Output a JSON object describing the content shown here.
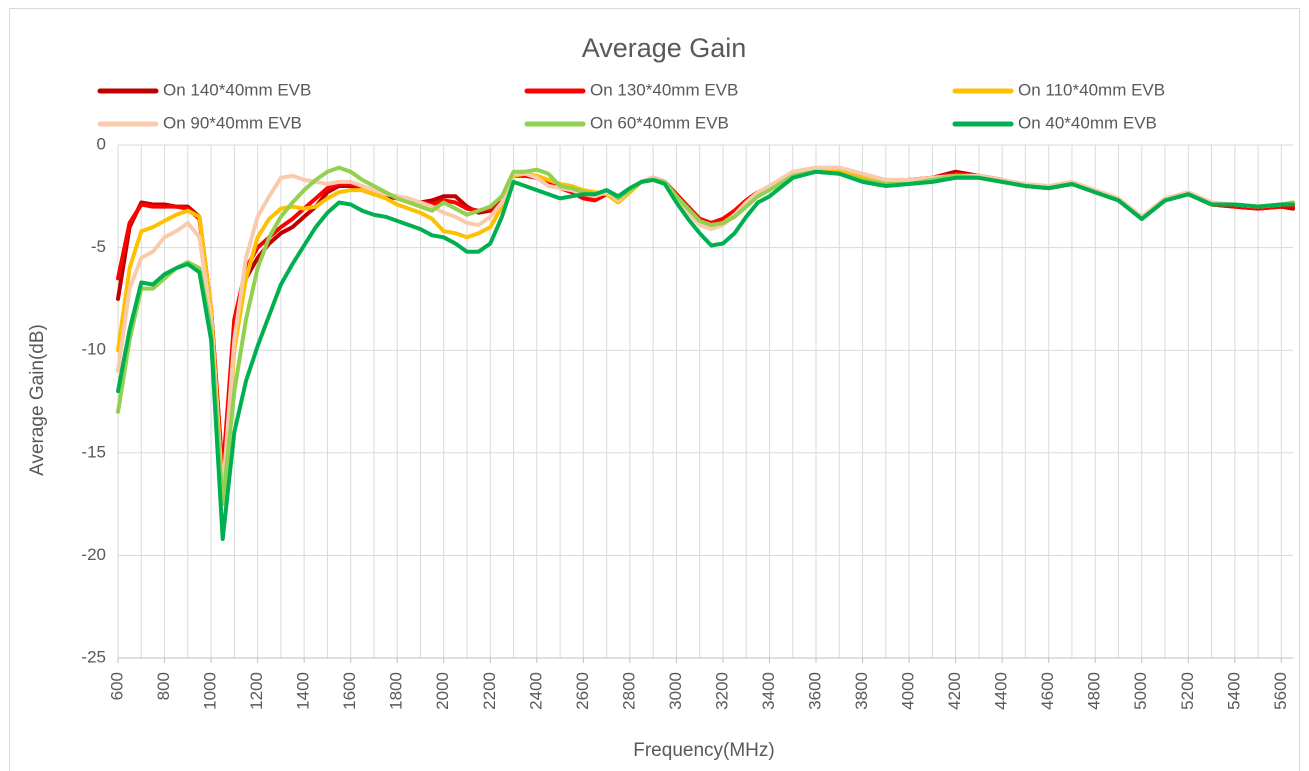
{
  "chart_data": {
    "type": "line",
    "title": "Average Gain",
    "x_label": "Frequency(MHz)",
    "y_label": "Average Gain(dB)",
    "xlim": [
      600,
      5650
    ],
    "ylim": [
      -25,
      0
    ],
    "xticks": [
      600,
      800,
      1000,
      1200,
      1400,
      1600,
      1800,
      2000,
      2200,
      2400,
      2600,
      2800,
      3000,
      3200,
      3400,
      3600,
      3800,
      4000,
      4200,
      4400,
      4600,
      4800,
      5000,
      5200,
      5400,
      5600
    ],
    "yticks": [
      0,
      -5,
      -10,
      -15,
      -20,
      -25
    ],
    "grid": true,
    "x_grid_step": 100,
    "legend": "top",
    "x": [
      600,
      650,
      700,
      750,
      800,
      850,
      900,
      950,
      1000,
      1050,
      1100,
      1150,
      1200,
      1250,
      1300,
      1350,
      1400,
      1450,
      1500,
      1550,
      1600,
      1650,
      1700,
      1750,
      1800,
      1850,
      1900,
      1950,
      2000,
      2050,
      2100,
      2150,
      2200,
      2250,
      2300,
      2350,
      2400,
      2450,
      2500,
      2550,
      2600,
      2650,
      2700,
      2750,
      2800,
      2850,
      2900,
      2950,
      3000,
      3050,
      3100,
      3150,
      3200,
      3250,
      3300,
      3350,
      3400,
      3500,
      3600,
      3700,
      3800,
      3900,
      4000,
      4100,
      4200,
      4300,
      4400,
      4500,
      4600,
      4700,
      4800,
      4900,
      5000,
      5100,
      5200,
      5300,
      5400,
      5500,
      5600,
      5650
    ],
    "series": [
      {
        "name": "On 140*40mm EVB",
        "color": "#c00000",
        "values": [
          -7.5,
          -4,
          -2.8,
          -2.9,
          -2.9,
          -3,
          -3,
          -3.5,
          -8,
          -16,
          -9,
          -6.5,
          -5.5,
          -4.8,
          -4.3,
          -4,
          -3.5,
          -3,
          -2.3,
          -2,
          -2,
          -2.2,
          -2.4,
          -2.5,
          -2.6,
          -2.7,
          -2.8,
          -2.7,
          -2.5,
          -2.5,
          -3,
          -3.3,
          -3.2,
          -2.8,
          -1.5,
          -1.5,
          -1.6,
          -1.8,
          -2,
          -2.2,
          -2.5,
          -2.6,
          -2.3,
          -2.6,
          -2.2,
          -1.8,
          -1.6,
          -1.8,
          -2.4,
          -3,
          -3.6,
          -3.8,
          -3.6,
          -3.2,
          -2.7,
          -2.3,
          -2.1,
          -1.5,
          -1.2,
          -1.3,
          -1.6,
          -1.8,
          -1.7,
          -1.6,
          -1.3,
          -1.5,
          -1.7,
          -2,
          -2.1,
          -1.9,
          -2.3,
          -2.7,
          -3.6,
          -2.7,
          -2.4,
          -2.9,
          -3,
          -3.1,
          -3,
          -3.1
        ]
      },
      {
        "name": "On 130*40mm EVB",
        "color": "#ff0000",
        "values": [
          -6.5,
          -3.8,
          -2.9,
          -3,
          -3,
          -3,
          -3.1,
          -3.6,
          -8,
          -16,
          -8.5,
          -6,
          -5,
          -4.5,
          -4,
          -3.6,
          -3.1,
          -2.6,
          -2.1,
          -1.9,
          -1.9,
          -2.1,
          -2.3,
          -2.4,
          -2.5,
          -2.7,
          -2.8,
          -2.9,
          -2.7,
          -2.8,
          -3.1,
          -3.2,
          -3.1,
          -2.7,
          -1.5,
          -1.5,
          -1.6,
          -1.9,
          -2.1,
          -2.3,
          -2.6,
          -2.7,
          -2.4,
          -2.7,
          -2.2,
          -1.8,
          -1.6,
          -1.8,
          -2.4,
          -3,
          -3.6,
          -3.8,
          -3.6,
          -3.2,
          -2.7,
          -2.3,
          -2.1,
          -1.5,
          -1.2,
          -1.3,
          -1.6,
          -1.8,
          -1.7,
          -1.6,
          -1.4,
          -1.5,
          -1.7,
          -2,
          -2.1,
          -1.9,
          -2.3,
          -2.7,
          -3.6,
          -2.7,
          -2.4,
          -2.9,
          -3,
          -3.1,
          -3,
          -3
        ]
      },
      {
        "name": "On 110*40mm EVB",
        "color": "#ffc000",
        "values": [
          -10,
          -6,
          -4.2,
          -4,
          -3.7,
          -3.4,
          -3.2,
          -3.5,
          -8,
          -17,
          -10,
          -6.5,
          -4.5,
          -3.6,
          -3.1,
          -3,
          -3.1,
          -3,
          -2.6,
          -2.3,
          -2.2,
          -2.2,
          -2.4,
          -2.6,
          -2.9,
          -3.1,
          -3.3,
          -3.6,
          -4.2,
          -4.3,
          -4.5,
          -4.3,
          -4,
          -3,
          -1.5,
          -1.4,
          -1.5,
          -1.7,
          -1.9,
          -2,
          -2.2,
          -2.3,
          -2.4,
          -2.8,
          -2.3,
          -1.8,
          -1.7,
          -1.8,
          -2.5,
          -3.1,
          -3.7,
          -4,
          -3.8,
          -3.4,
          -2.9,
          -2.4,
          -2.2,
          -1.5,
          -1.2,
          -1.3,
          -1.6,
          -1.8,
          -1.8,
          -1.7,
          -1.5,
          -1.6,
          -1.8,
          -2,
          -2.1,
          -1.9,
          -2.3,
          -2.7,
          -3.6,
          -2.7,
          -2.4,
          -2.9,
          -2.9,
          -3,
          -2.9,
          -2.8
        ]
      },
      {
        "name": "On 90*40mm EVB",
        "color": "#f8cbad",
        "values": [
          -11,
          -7,
          -5.5,
          -5.2,
          -4.5,
          -4.2,
          -3.8,
          -4.5,
          -8.5,
          -17,
          -9.5,
          -5.5,
          -3.5,
          -2.5,
          -1.6,
          -1.5,
          -1.7,
          -1.8,
          -1.9,
          -1.8,
          -1.8,
          -2,
          -2.2,
          -2.4,
          -2.5,
          -2.6,
          -2.8,
          -3,
          -3.3,
          -3.5,
          -3.8,
          -3.9,
          -3.5,
          -2.8,
          -1.4,
          -1.4,
          -1.6,
          -2,
          -2.1,
          -2.2,
          -2.4,
          -2.5,
          -2.3,
          -2.7,
          -2.2,
          -1.8,
          -1.6,
          -1.8,
          -2.6,
          -3.3,
          -3.9,
          -4.1,
          -3.9,
          -3.4,
          -2.8,
          -2.3,
          -2,
          -1.3,
          -1.1,
          -1.1,
          -1.4,
          -1.7,
          -1.7,
          -1.6,
          -1.5,
          -1.5,
          -1.7,
          -1.9,
          -2,
          -1.8,
          -2.2,
          -2.6,
          -3.5,
          -2.6,
          -2.3,
          -2.8,
          -2.9,
          -3,
          -2.9,
          -2.8
        ]
      },
      {
        "name": "On 60*40mm EVB",
        "color": "#92d050",
        "values": [
          -13,
          -9.5,
          -7,
          -7,
          -6.5,
          -6,
          -5.7,
          -6,
          -9,
          -17.5,
          -12,
          -8.5,
          -6,
          -4.5,
          -3.5,
          -2.8,
          -2.2,
          -1.7,
          -1.3,
          -1.1,
          -1.3,
          -1.7,
          -2,
          -2.3,
          -2.6,
          -2.8,
          -3,
          -3.2,
          -2.8,
          -3.1,
          -3.4,
          -3.2,
          -3,
          -2.5,
          -1.3,
          -1.3,
          -1.2,
          -1.4,
          -2,
          -2.1,
          -2.3,
          -2.4,
          -2.2,
          -2.6,
          -2.2,
          -1.8,
          -1.7,
          -1.8,
          -2.5,
          -3.1,
          -3.7,
          -3.9,
          -3.8,
          -3.5,
          -3,
          -2.5,
          -2.2,
          -1.5,
          -1.3,
          -1.4,
          -1.7,
          -1.9,
          -1.9,
          -1.7,
          -1.5,
          -1.6,
          -1.8,
          -2,
          -2.1,
          -1.9,
          -2.3,
          -2.7,
          -3.6,
          -2.7,
          -2.4,
          -2.9,
          -2.9,
          -3,
          -2.9,
          -2.8
        ]
      },
      {
        "name": "On 40*40mm EVB",
        "color": "#00b050",
        "values": [
          -12,
          -9,
          -6.7,
          -6.8,
          -6.3,
          -6,
          -5.8,
          -6.2,
          -9.5,
          -19.2,
          -14,
          -11.5,
          -9.8,
          -8.3,
          -6.8,
          -5.8,
          -4.9,
          -4,
          -3.3,
          -2.8,
          -2.9,
          -3.2,
          -3.4,
          -3.5,
          -3.7,
          -3.9,
          -4.1,
          -4.4,
          -4.5,
          -4.8,
          -5.2,
          -5.2,
          -4.8,
          -3.5,
          -1.8,
          -2,
          -2.2,
          -2.4,
          -2.6,
          -2.5,
          -2.4,
          -2.4,
          -2.2,
          -2.5,
          -2.1,
          -1.8,
          -1.7,
          -1.9,
          -2.8,
          -3.6,
          -4.3,
          -4.9,
          -4.8,
          -4.3,
          -3.5,
          -2.8,
          -2.5,
          -1.6,
          -1.3,
          -1.4,
          -1.8,
          -2,
          -1.9,
          -1.8,
          -1.6,
          -1.6,
          -1.8,
          -2,
          -2.1,
          -1.9,
          -2.3,
          -2.7,
          -3.6,
          -2.7,
          -2.4,
          -2.9,
          -2.9,
          -3,
          -2.9,
          -2.9
        ]
      }
    ]
  }
}
